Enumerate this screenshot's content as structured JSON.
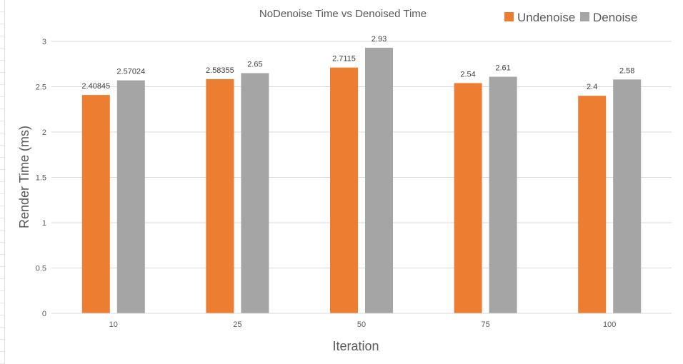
{
  "chart_data": {
    "type": "bar",
    "title": "NoDenoise Time vs Denoised Time",
    "xlabel": "Iteration",
    "ylabel": "Render Time (ms)",
    "categories": [
      "10",
      "25",
      "50",
      "75",
      "100"
    ],
    "ylim": [
      0,
      3
    ],
    "yticks": [
      "0",
      "0.5",
      "1",
      "1.5",
      "2",
      "2.5",
      "3"
    ],
    "grid": true,
    "legend_position": "top-right",
    "series": [
      {
        "name": "Undenoise",
        "color": "#ED7D31",
        "values": [
          2.40845,
          2.58355,
          2.7115,
          2.54,
          2.4
        ],
        "labels": [
          "2.40845",
          "2.58355",
          "2.7115",
          "2.54",
          "2.4"
        ]
      },
      {
        "name": "Denoise",
        "color": "#A5A5A5",
        "values": [
          2.57024,
          2.65,
          2.93,
          2.61,
          2.58
        ],
        "labels": [
          "2.57024",
          "2.65",
          "2.93",
          "2.61",
          "2.58"
        ]
      }
    ]
  }
}
